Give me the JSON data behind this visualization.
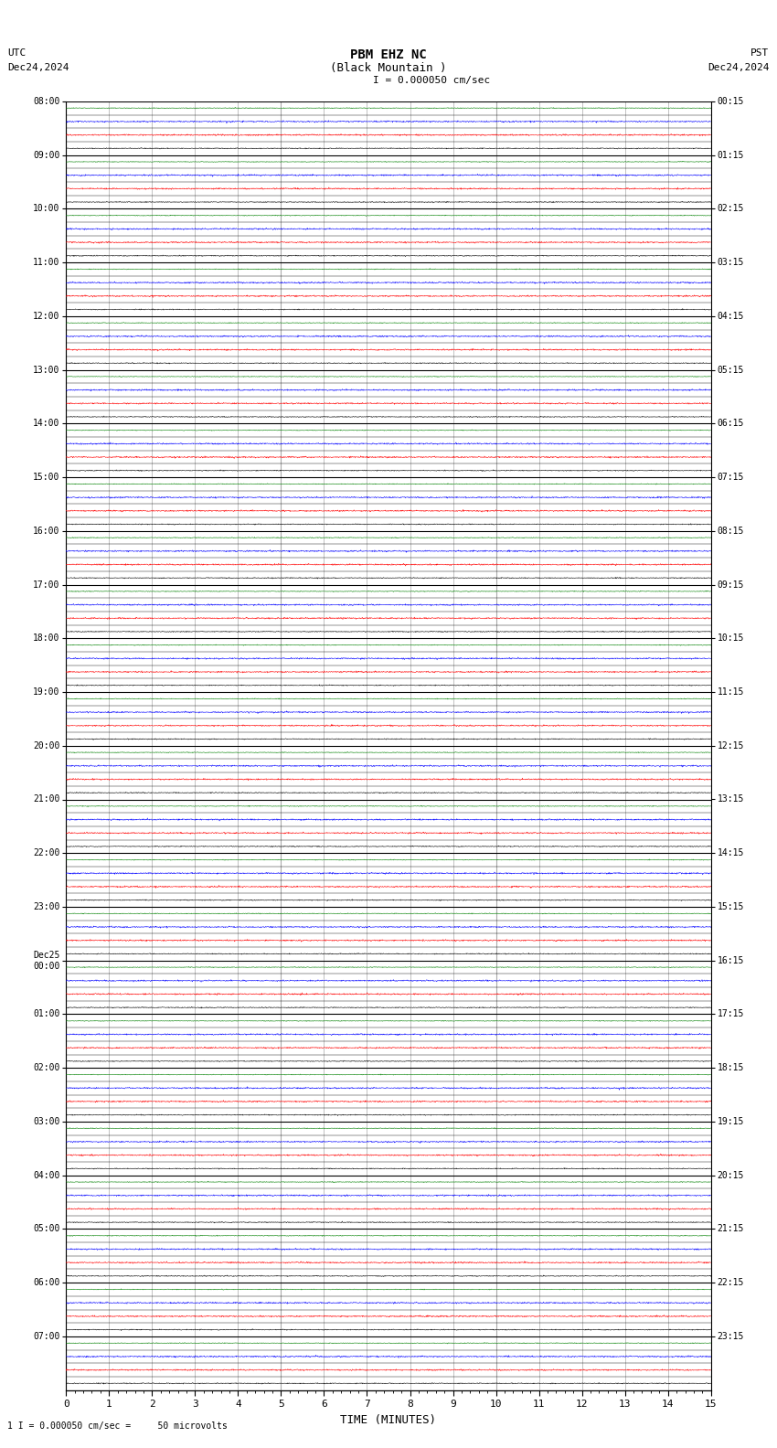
{
  "title_line1": "PBM EHZ NC",
  "title_line2": "(Black Mountain )",
  "scale_label": "I = 0.000050 cm/sec",
  "left_timezone": "UTC",
  "left_date": "Dec24,2024",
  "right_timezone": "PST",
  "right_date": "Dec24,2024",
  "bottom_note": "1 I = 0.000050 cm/sec =     50 microvolts",
  "xlabel": "TIME (MINUTES)",
  "num_rows": 24,
  "x_max": 15,
  "x_ticks": [
    0,
    1,
    2,
    3,
    4,
    5,
    6,
    7,
    8,
    9,
    10,
    11,
    12,
    13,
    14,
    15
  ],
  "left_labels": [
    "08:00",
    "09:00",
    "10:00",
    "11:00",
    "12:00",
    "13:00",
    "14:00",
    "15:00",
    "16:00",
    "17:00",
    "18:00",
    "19:00",
    "20:00",
    "21:00",
    "22:00",
    "23:00",
    "Dec25\n00:00",
    "01:00",
    "02:00",
    "03:00",
    "04:00",
    "05:00",
    "06:00",
    "07:00"
  ],
  "right_labels": [
    "00:15",
    "01:15",
    "02:15",
    "03:15",
    "04:15",
    "05:15",
    "06:15",
    "07:15",
    "08:15",
    "09:15",
    "10:15",
    "11:15",
    "12:15",
    "13:15",
    "14:15",
    "15:15",
    "16:15",
    "17:15",
    "18:15",
    "19:15",
    "20:15",
    "21:15",
    "22:15",
    "23:15"
  ],
  "bg_color": "#ffffff",
  "grid_color": "#aaaaaa",
  "trace_colors": [
    "#000000",
    "#ff0000",
    "#0000ff",
    "#008000"
  ],
  "fig_width": 8.5,
  "fig_height": 15.84,
  "seed": 42,
  "noise_amp": 0.004,
  "spike_amp": 0.012,
  "spike_prob": 0.008,
  "red_noise_amp": 0.006,
  "red_spike_amp": 0.018,
  "red_spike_prob": 0.012
}
